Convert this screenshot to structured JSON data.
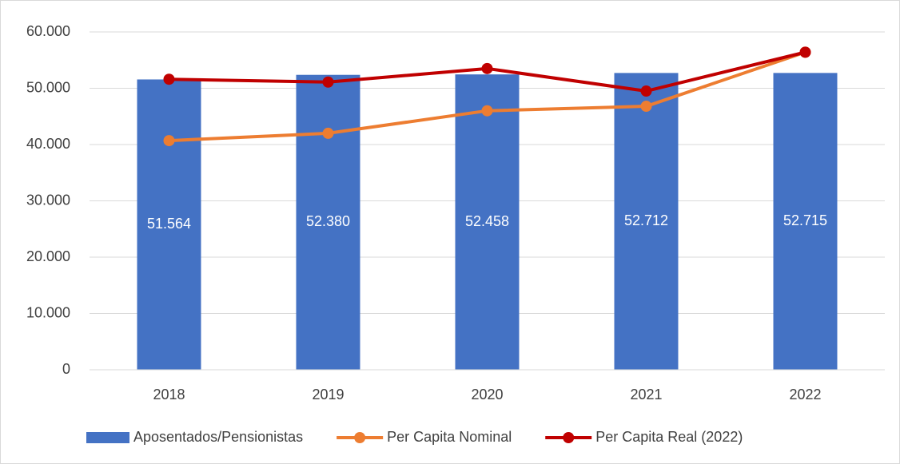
{
  "chart_data": {
    "type": "bar",
    "categories": [
      "2018",
      "2019",
      "2020",
      "2021",
      "2022"
    ],
    "series": [
      {
        "name": "Aposentados/Pensionistas",
        "type": "bar",
        "color": "#4472c4",
        "values": [
          51564,
          52380,
          52458,
          52712,
          52715
        ],
        "value_labels": [
          "51.564",
          "52.380",
          "52.458",
          "52.712",
          "52.715"
        ]
      },
      {
        "name": "Per Capita Nominal",
        "type": "line",
        "color": "#ed7d31",
        "values": [
          40700,
          42000,
          46000,
          46800,
          56400
        ]
      },
      {
        "name": "Per Capita Real (2022)",
        "type": "line",
        "color": "#c00000",
        "values": [
          51600,
          51100,
          53500,
          49500,
          56400
        ]
      }
    ],
    "ylim": [
      0,
      60000
    ],
    "yticks": [
      0,
      {
        "value": 10000,
        "label": "10.000"
      },
      {
        "value": 20000,
        "label": "20.000"
      },
      {
        "value": 30000,
        "label": "30.000"
      },
      {
        "value": 40000,
        "label": "40.000"
      },
      {
        "value": 50000,
        "label": "50.000"
      },
      {
        "value": 60000,
        "label": "60.000"
      }
    ],
    "grid": true,
    "legend": "bottom"
  }
}
